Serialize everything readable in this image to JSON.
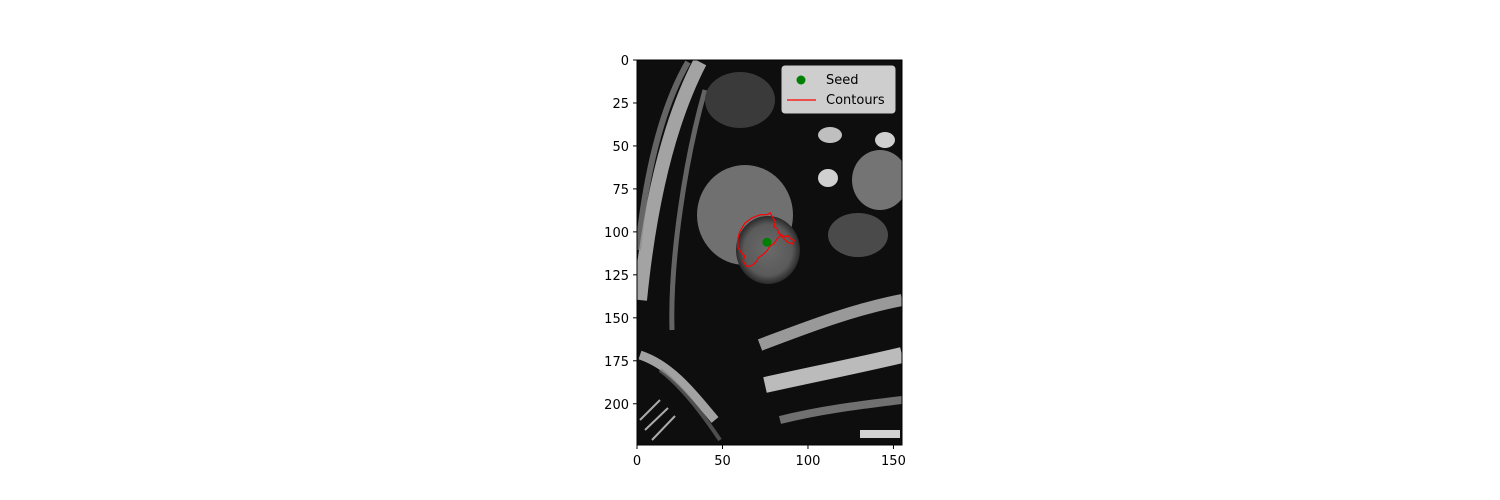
{
  "chart_data": {
    "type": "scatter",
    "title": "",
    "xlabel": "",
    "ylabel": "",
    "xlim": [
      0,
      155
    ],
    "ylim": [
      224,
      0
    ],
    "x_ticks": [
      0,
      50,
      100,
      150
    ],
    "y_ticks": [
      0,
      25,
      50,
      75,
      100,
      125,
      150,
      175,
      200
    ],
    "grid": false,
    "legend_placement": "upper right",
    "background": "grayscale cardiac MRI short-axis image",
    "series": [
      {
        "name": "Seed",
        "kind": "point",
        "color": "#008000",
        "points": [
          [
            76,
            106
          ]
        ]
      },
      {
        "name": "Contours",
        "kind": "line",
        "color": "#ff0000",
        "points": [
          [
            60,
            100
          ],
          [
            63,
            95
          ],
          [
            67,
            92
          ],
          [
            72,
            90
          ],
          [
            76,
            90
          ],
          [
            78,
            89
          ],
          [
            79,
            91
          ],
          [
            81,
            94
          ],
          [
            80,
            97
          ],
          [
            82,
            98
          ],
          [
            83,
            101
          ],
          [
            85,
            102
          ],
          [
            87,
            103
          ],
          [
            88,
            102
          ],
          [
            90,
            104
          ],
          [
            92,
            105
          ],
          [
            91,
            107
          ],
          [
            88,
            106
          ],
          [
            86,
            104
          ],
          [
            84,
            102
          ],
          [
            82,
            104
          ],
          [
            80,
            107
          ],
          [
            78,
            108
          ],
          [
            76,
            111
          ],
          [
            74,
            113
          ],
          [
            71,
            115
          ],
          [
            70,
            117
          ],
          [
            68,
            119
          ],
          [
            66,
            120
          ],
          [
            64,
            120
          ],
          [
            62,
            117
          ],
          [
            63,
            114
          ],
          [
            61,
            112
          ],
          [
            59,
            109
          ],
          [
            59,
            104
          ],
          [
            60,
            100
          ]
        ]
      }
    ]
  }
}
